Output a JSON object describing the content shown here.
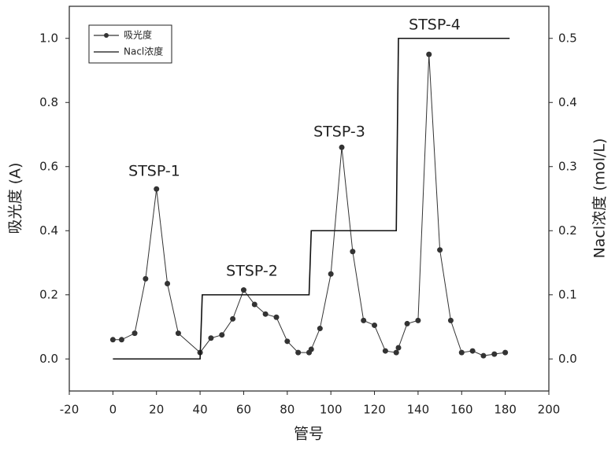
{
  "chart_data": {
    "type": "line",
    "x_label": "管号",
    "y_label": "吸光度 (A)",
    "y2_label": "Nacl浓度 (mol/L)",
    "xlim": [
      -20,
      200
    ],
    "xticks": [
      -20,
      0,
      20,
      40,
      60,
      80,
      100,
      120,
      140,
      160,
      180,
      200
    ],
    "ylim": [
      -0.1,
      1.1
    ],
    "yticks": [
      {
        "value": 0,
        "label": "0.0"
      },
      {
        "value": 0.2,
        "label": "0.2"
      },
      {
        "value": 0.4,
        "label": "0.4"
      },
      {
        "value": 0.6,
        "label": "0.6"
      },
      {
        "value": 0.8,
        "label": "0.8"
      },
      {
        "value": 1,
        "label": "1.0"
      }
    ],
    "y2lim": [
      -0.05,
      0.55
    ],
    "y2ticks": [
      {
        "value": 0,
        "label": "0.0"
      },
      {
        "value": 0.1,
        "label": "0.1"
      },
      {
        "value": 0.2,
        "label": "0.2"
      },
      {
        "value": 0.3,
        "label": "0.3"
      },
      {
        "value": 0.4,
        "label": "0.4"
      },
      {
        "value": 0.5,
        "label": "0.5"
      }
    ],
    "legend": "upper left",
    "annotations": [
      "STSP-1",
      "STSP-2",
      "STSP-3",
      "STSP-4"
    ],
    "series": [
      {
        "name": "吸光度",
        "color": "#333333",
        "marker": true,
        "x": [
          0,
          4,
          10,
          15,
          20,
          25,
          30,
          40,
          45,
          50,
          55,
          60,
          65,
          70,
          75,
          80,
          85,
          90,
          91,
          95,
          100,
          105,
          110,
          115,
          120,
          125,
          130,
          131,
          135,
          140,
          145,
          150,
          155,
          160,
          165,
          170,
          175,
          180
        ],
        "values": [
          0.06,
          0.06,
          0.08,
          0.25,
          0.53,
          0.235,
          0.08,
          0.02,
          0.065,
          0.075,
          0.125,
          0.215,
          0.17,
          0.14,
          0.13,
          0.055,
          0.02,
          0.02,
          0.03,
          0.095,
          0.265,
          0.66,
          0.335,
          0.12,
          0.105,
          0.025,
          0.02,
          0.035,
          0.11,
          0.12,
          0.95,
          0.34,
          0.12,
          0.02,
          0.025,
          0.01,
          0.015,
          0.02
        ]
      },
      {
        "name": "Nacl浓度",
        "color": "#111111",
        "marker": false,
        "axis": "y2",
        "x": [
          0,
          40,
          41,
          90,
          91,
          130,
          131,
          182
        ],
        "values": [
          0,
          0,
          0.1,
          0.1,
          0.2,
          0.2,
          0.5,
          0.5
        ]
      }
    ]
  }
}
